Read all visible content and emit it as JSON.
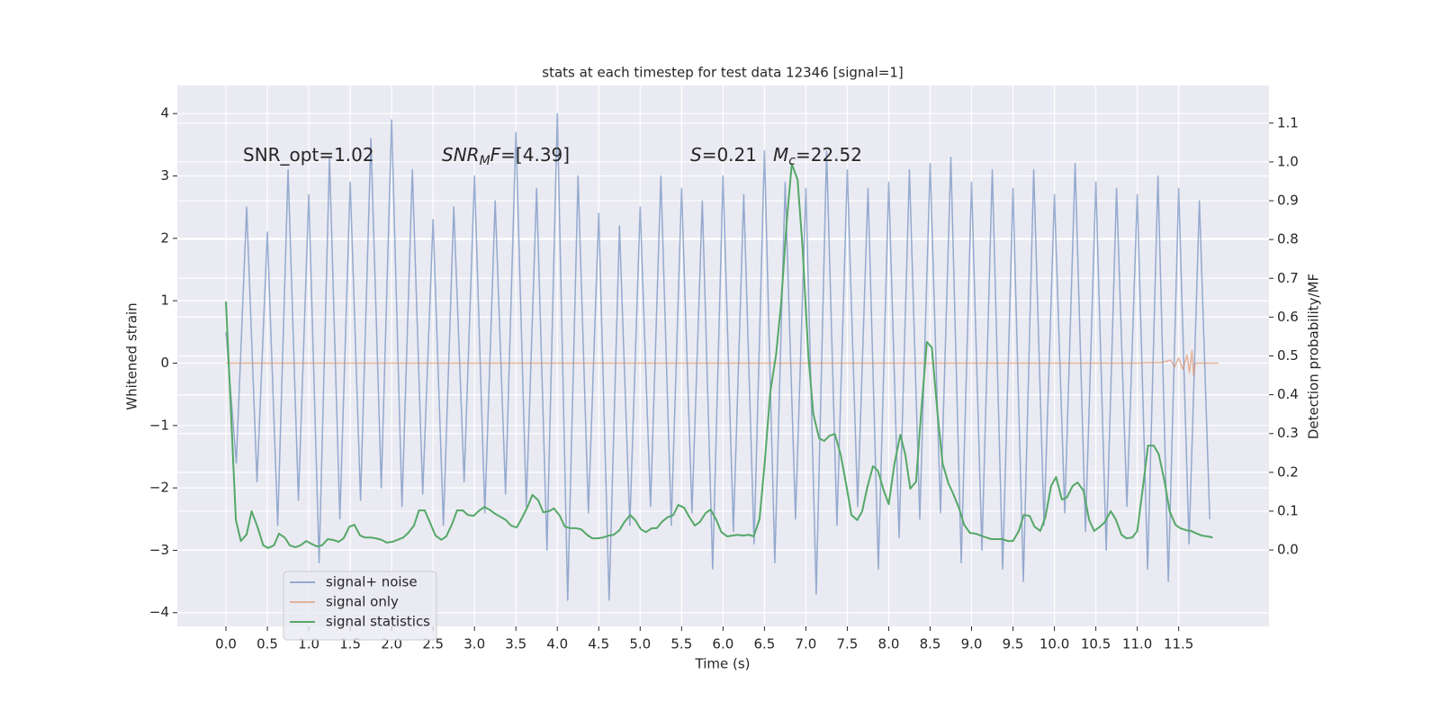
{
  "chart_data": {
    "type": "line",
    "title": "stats at each timestep for test data 12346 [signal=1]",
    "xlabel": "Time (s)",
    "ylabel": "Whitened strain",
    "y2label": "Detection probability/MF",
    "xlim": [
      -0.587,
      12.59
    ],
    "ylim": [
      -4.22,
      4.45
    ],
    "y2lim": [
      -0.197,
      1.197
    ],
    "xticks": [
      {
        "value": 0,
        "label": "0.0"
      },
      0.5,
      {
        "value": 1,
        "label": "1.0"
      },
      1.5,
      {
        "value": 2,
        "label": "2.0"
      },
      2.5,
      {
        "value": 3,
        "label": "3.0"
      },
      3.5,
      {
        "value": 4,
        "label": "4.0"
      },
      4.5,
      {
        "value": 5,
        "label": "5.0"
      },
      5.5,
      {
        "value": 6,
        "label": "6.0"
      },
      6.5,
      {
        "value": 7,
        "label": "7.0"
      },
      7.5,
      {
        "value": 8,
        "label": "8.0"
      },
      8.5,
      {
        "value": 9,
        "label": "9.0"
      },
      9.5,
      {
        "value": 10,
        "label": "10.0"
      },
      10.5,
      {
        "value": 11,
        "label": "11.0"
      },
      11.5
    ],
    "yticks": [
      {
        "value": -4,
        "label": "−4"
      },
      {
        "value": -3,
        "label": "−3"
      },
      {
        "value": -2,
        "label": "−2"
      },
      {
        "value": -1,
        "label": "−1"
      },
      0,
      1,
      2,
      3,
      4
    ],
    "y2ticks": [
      {
        "value": 0,
        "label": "0.0"
      },
      0.1,
      0.2,
      0.3,
      0.4,
      0.5,
      0.6,
      0.7,
      0.8,
      0.9,
      {
        "value": 1,
        "label": "1.0"
      },
      1.1
    ],
    "grid": true,
    "legend": "lower left",
    "annotations": [
      [
        {
          "text": "SNR_opt=1.02"
        }
      ],
      [
        {
          "text": "SNR",
          "italic": true
        },
        {
          "text": "M",
          "italic": true,
          "sub": true
        },
        {
          "text": "F",
          "italic": true
        },
        {
          "text": "=[4.39]"
        }
      ],
      [
        {
          "text": "S",
          "italic": true
        },
        {
          "text": "=0.21"
        }
      ],
      [
        {
          "text": "M",
          "italic": true
        },
        {
          "text": "c",
          "italic": true,
          "sub": true
        },
        {
          "text": "=22.52"
        }
      ]
    ],
    "series": [
      {
        "name": "signal+ noise",
        "color": "#4c72b0",
        "x": [
          0,
          0.125,
          0.25,
          0.375,
          0.5,
          0.625,
          0.75,
          0.875,
          1,
          1.125,
          1.25,
          1.375,
          1.5,
          1.625,
          1.75,
          1.875,
          2,
          2.125,
          2.25,
          2.375,
          2.5,
          2.625,
          2.75,
          2.875,
          3,
          3.125,
          3.25,
          3.375,
          3.5,
          3.625,
          3.75,
          3.875,
          4,
          4.125,
          4.25,
          4.375,
          4.5,
          4.625,
          4.75,
          4.875,
          5,
          5.125,
          5.25,
          5.375,
          5.5,
          5.625,
          5.75,
          5.875,
          6,
          6.125,
          6.25,
          6.375,
          6.5,
          6.625,
          6.75,
          6.875,
          7,
          7.125,
          7.25,
          7.375,
          7.5,
          7.625,
          7.75,
          7.875,
          8,
          8.125,
          8.25,
          8.375,
          8.5,
          8.625,
          8.75,
          8.875,
          9,
          9.125,
          9.25,
          9.375,
          9.5,
          9.625,
          9.75,
          9.875,
          10,
          10.125,
          10.25,
          10.375,
          10.5,
          10.625,
          10.75,
          10.875,
          11,
          11.125,
          11.25,
          11.375,
          11.5,
          11.625,
          11.75,
          11.875
        ],
        "values": [
          0.5,
          -1.6,
          2.5,
          -1.9,
          2.1,
          -2.6,
          3.1,
          -2.2,
          2.7,
          -3.2,
          3.3,
          -2.5,
          2.9,
          -2.2,
          3.6,
          -2.0,
          3.9,
          -2.3,
          3.1,
          -2.1,
          2.3,
          -2.6,
          2.5,
          -1.9,
          3.0,
          -2.4,
          2.6,
          -2.1,
          3.7,
          -2.3,
          2.8,
          -3.0,
          4.0,
          -3.8,
          3.0,
          -2.4,
          2.4,
          -3.8,
          2.2,
          -2.6,
          2.5,
          -2.3,
          3.0,
          -2.6,
          2.8,
          -2.4,
          2.6,
          -3.3,
          3.0,
          -2.7,
          2.7,
          -2.9,
          3.4,
          -3.2,
          2.9,
          -2.5,
          2.8,
          -3.7,
          3.4,
          -2.6,
          3.1,
          -2.3,
          2.8,
          -3.3,
          2.9,
          -2.8,
          3.1,
          -2.5,
          3.2,
          -2.4,
          3.3,
          -3.2,
          2.9,
          -3.0,
          3.1,
          -3.3,
          2.8,
          -3.5,
          3.1,
          -2.6,
          2.7,
          -2.4,
          3.2,
          -2.7,
          2.9,
          -3.0,
          2.8,
          -2.3,
          2.7,
          -3.3,
          3.0,
          -3.5,
          2.8,
          -2.9,
          2.6,
          -2.5
        ]
      },
      {
        "name": "signal only",
        "color": "#dd8452",
        "x": [
          0,
          11.0,
          11.3,
          11.4,
          11.45,
          11.5,
          11.55,
          11.6,
          11.63,
          11.66,
          11.68,
          11.7,
          11.98
        ],
        "values": [
          0,
          0,
          0.01,
          0.05,
          -0.06,
          0.08,
          -0.1,
          0.13,
          -0.15,
          0.2,
          -0.2,
          0,
          0
        ]
      },
      {
        "name": "signal statistics",
        "color": "#55a868",
        "axis": "y2",
        "x": [
          0,
          0.12,
          0.18,
          0.25,
          0.31,
          0.38,
          0.45,
          0.51,
          0.58,
          0.64,
          0.71,
          0.77,
          0.84,
          0.9,
          0.97,
          1.03,
          1.1,
          1.16,
          1.23,
          1.29,
          1.36,
          1.42,
          1.49,
          1.55,
          1.62,
          1.68,
          1.75,
          1.81,
          1.88,
          1.94,
          2.01,
          2.07,
          2.14,
          2.2,
          2.27,
          2.33,
          2.4,
          2.46,
          2.53,
          2.6,
          2.66,
          2.73,
          2.79,
          2.86,
          2.92,
          2.99,
          3.05,
          3.12,
          3.18,
          3.25,
          3.31,
          3.38,
          3.44,
          3.51,
          3.57,
          3.64,
          3.7,
          3.77,
          3.83,
          3.9,
          3.96,
          4.03,
          4.09,
          4.16,
          4.23,
          4.29,
          4.36,
          4.42,
          4.49,
          4.55,
          4.62,
          4.68,
          4.75,
          4.81,
          4.88,
          4.94,
          5.01,
          5.07,
          5.14,
          5.2,
          5.27,
          5.33,
          5.4,
          5.46,
          5.53,
          5.59,
          5.66,
          5.72,
          5.79,
          5.85,
          5.92,
          5.98,
          6.05,
          6.11,
          6.18,
          6.24,
          6.31,
          6.37,
          6.44,
          6.5,
          6.57,
          6.64,
          6.7,
          6.77,
          6.83,
          6.9,
          6.96,
          7.03,
          7.09,
          7.16,
          7.22,
          7.29,
          7.35,
          7.42,
          7.49,
          7.55,
          7.62,
          7.68,
          7.74,
          7.81,
          7.87,
          7.94,
          8.0,
          8.07,
          8.14,
          8.2,
          8.26,
          8.33,
          8.39,
          8.46,
          8.52,
          8.59,
          8.65,
          8.72,
          8.78,
          8.85,
          8.91,
          8.98,
          9.05,
          9.11,
          9.18,
          9.24,
          9.31,
          9.37,
          9.44,
          9.5,
          9.57,
          9.63,
          9.7,
          9.76,
          9.83,
          9.89,
          9.96,
          10.02,
          10.09,
          10.15,
          10.22,
          10.28,
          10.35,
          10.42,
          10.48,
          10.55,
          10.61,
          10.68,
          10.74,
          10.81,
          10.87,
          10.94,
          11.0,
          11.07,
          11.13,
          11.2,
          11.26,
          11.33,
          11.39,
          11.46,
          11.52,
          11.59,
          11.65,
          11.72,
          11.78,
          11.85,
          11.91
        ],
        "values": [
          0.64,
          0.077,
          0.023,
          0.04,
          0.1,
          0.06,
          0.012,
          0.005,
          0.012,
          0.042,
          0.032,
          0.012,
          0.007,
          0.012,
          0.023,
          0.016,
          0.009,
          0.012,
          0.028,
          0.026,
          0.021,
          0.03,
          0.06,
          0.065,
          0.037,
          0.032,
          0.032,
          0.03,
          0.026,
          0.019,
          0.021,
          0.026,
          0.032,
          0.044,
          0.063,
          0.102,
          0.102,
          0.072,
          0.037,
          0.026,
          0.035,
          0.067,
          0.102,
          0.102,
          0.09,
          0.088,
          0.1,
          0.111,
          0.104,
          0.093,
          0.086,
          0.077,
          0.063,
          0.058,
          0.081,
          0.111,
          0.142,
          0.128,
          0.097,
          0.1,
          0.107,
          0.088,
          0.06,
          0.056,
          0.056,
          0.053,
          0.039,
          0.03,
          0.03,
          0.032,
          0.037,
          0.039,
          0.051,
          0.072,
          0.09,
          0.077,
          0.053,
          0.046,
          0.056,
          0.056,
          0.074,
          0.084,
          0.09,
          0.116,
          0.109,
          0.086,
          0.063,
          0.072,
          0.095,
          0.104,
          0.077,
          0.046,
          0.035,
          0.037,
          0.039,
          0.037,
          0.039,
          0.035,
          0.079,
          0.216,
          0.406,
          0.503,
          0.633,
          0.849,
          0.995,
          0.954,
          0.78,
          0.501,
          0.35,
          0.288,
          0.281,
          0.295,
          0.299,
          0.246,
          0.165,
          0.09,
          0.077,
          0.1,
          0.16,
          0.216,
          0.204,
          0.153,
          0.118,
          0.223,
          0.297,
          0.246,
          0.158,
          0.176,
          0.35,
          0.536,
          0.522,
          0.35,
          0.223,
          0.172,
          0.144,
          0.107,
          0.065,
          0.044,
          0.042,
          0.037,
          0.032,
          0.028,
          0.028,
          0.028,
          0.023,
          0.023,
          0.049,
          0.09,
          0.088,
          0.06,
          0.049,
          0.084,
          0.165,
          0.188,
          0.13,
          0.135,
          0.165,
          0.174,
          0.153,
          0.077,
          0.049,
          0.06,
          0.072,
          0.1,
          0.079,
          0.039,
          0.03,
          0.032,
          0.049,
          0.165,
          0.269,
          0.269,
          0.246,
          0.176,
          0.1,
          0.065,
          0.056,
          0.051,
          0.049,
          0.042,
          0.037,
          0.035,
          0.032
        ]
      }
    ]
  }
}
